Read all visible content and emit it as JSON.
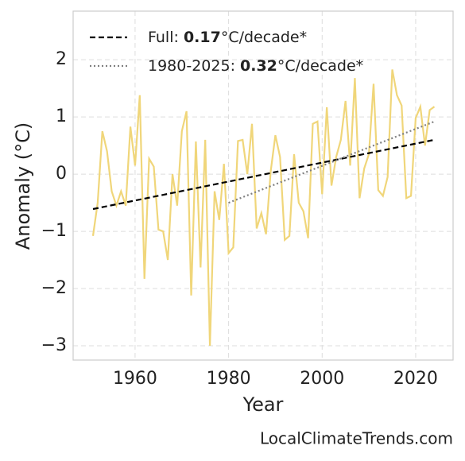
{
  "chart_data": {
    "type": "line",
    "xlabel": "Year",
    "ylabel": "Anomaly (°C)",
    "watermark": "LocalClimateTrends.com",
    "x": [
      1951,
      1952,
      1953,
      1954,
      1955,
      1956,
      1957,
      1958,
      1959,
      1960,
      1961,
      1962,
      1963,
      1964,
      1965,
      1966,
      1967,
      1968,
      1969,
      1970,
      1971,
      1972,
      1973,
      1974,
      1975,
      1976,
      1977,
      1978,
      1979,
      1980,
      1981,
      1982,
      1983,
      1984,
      1985,
      1986,
      1987,
      1988,
      1989,
      1990,
      1991,
      1992,
      1993,
      1994,
      1995,
      1996,
      1997,
      1998,
      1999,
      2000,
      2001,
      2002,
      2003,
      2004,
      2005,
      2006,
      2007,
      2008,
      2009,
      2010,
      2011,
      2012,
      2013,
      2014,
      2015,
      2016,
      2017,
      2018,
      2019,
      2020,
      2021,
      2022,
      2023,
      2024
    ],
    "series": [
      {
        "color": "#f0d67a",
        "values": [
          -1.08,
          -0.5,
          0.75,
          0.4,
          -0.3,
          -0.55,
          -0.3,
          -0.55,
          0.83,
          0.15,
          1.38,
          -1.83,
          0.27,
          0.13,
          -0.97,
          -1.0,
          -1.5,
          0.0,
          -0.55,
          0.75,
          1.1,
          -2.12,
          0.57,
          -1.63,
          0.6,
          -3.0,
          -0.3,
          -0.8,
          0.18,
          -1.38,
          -1.28,
          0.58,
          0.6,
          0.0,
          0.88,
          -0.95,
          -0.68,
          -1.05,
          0.05,
          0.68,
          0.3,
          -1.15,
          -1.08,
          0.35,
          -0.5,
          -0.65,
          -1.12,
          0.88,
          0.92,
          -0.35,
          1.17,
          -0.2,
          0.3,
          0.6,
          1.28,
          0.15,
          1.68,
          -0.42,
          0.1,
          0.35,
          1.58,
          -0.28,
          -0.38,
          -0.05,
          1.83,
          1.38,
          1.2,
          -0.42,
          -0.38,
          0.98,
          1.18,
          0.5,
          1.12,
          1.18
        ]
      }
    ],
    "trends": [
      {
        "name_prefix": "Full: ",
        "slope": 0.17,
        "name_suffix": "°C/decade*",
        "color": "#000000",
        "dash": "dashed",
        "x": [
          1951,
          2024
        ],
        "values": [
          -0.61,
          0.6
        ]
      },
      {
        "name_prefix": "1980-2025: ",
        "slope": 0.32,
        "name_suffix": "°C/decade*",
        "color": "#808080",
        "dash": "dotted",
        "x": [
          1980,
          2024
        ],
        "values": [
          -0.5,
          0.92
        ]
      }
    ],
    "xlim": [
      1946.75,
      2028
    ],
    "ylim": [
      -3.25,
      2.85
    ],
    "xticks": [
      1960,
      1980,
      2000,
      2020
    ],
    "yticks": [
      {
        "value": -3,
        "label": "−3"
      },
      {
        "value": -2,
        "label": "−2"
      },
      {
        "value": -1,
        "label": "−1"
      },
      0,
      1,
      2
    ],
    "grid": true,
    "legend": "upper left"
  }
}
